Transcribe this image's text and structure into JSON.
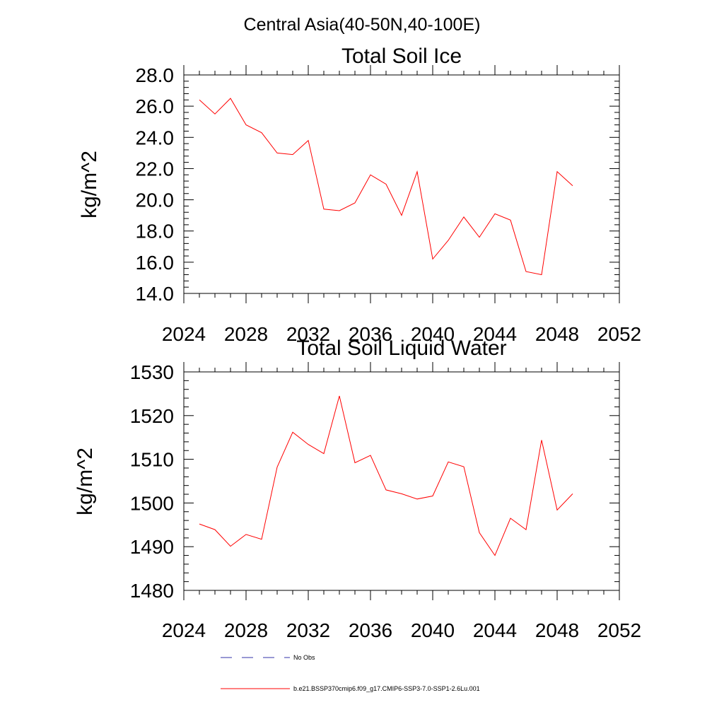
{
  "suptitle": "Central Asia(40-50N,40-100E)",
  "colors": {
    "series": "#ff0000",
    "obs": "#3333aa",
    "axis": "#000000"
  },
  "legend": {
    "position": "bottom-left",
    "entries": [
      {
        "label": "No Obs",
        "style": "dashed",
        "color": "#3333aa"
      },
      {
        "label": "b.e21.BSSP370cmip6.f09_g17.CMIP6-SSP3-7.0-SSP1-2.6Lu.001",
        "style": "solid",
        "color": "#ff0000"
      }
    ]
  },
  "chart_data": [
    {
      "type": "line",
      "title": "Total Soil Ice",
      "xlabel": "",
      "ylabel": "kg/m^2",
      "xlim": [
        2024,
        2052
      ],
      "ylim": [
        14,
        28
      ],
      "xticks": [
        2024,
        2028,
        2032,
        2036,
        2040,
        2044,
        2048,
        2052
      ],
      "xtick_labels": [
        "2024",
        "2028",
        "2032",
        "2036",
        "2040",
        "2044",
        "2048",
        "2052"
      ],
      "yticks": [
        14,
        16,
        18,
        20,
        22,
        24,
        26,
        28
      ],
      "ytick_labels": [
        "14.0",
        "16.0",
        "18.0",
        "20.0",
        "22.0",
        "24.0",
        "26.0",
        "28.0"
      ],
      "grid": false,
      "series": [
        {
          "x": [
            2025,
            2026,
            2027,
            2028,
            2029,
            2030,
            2031,
            2032,
            2033,
            2034,
            2035,
            2036,
            2037,
            2038,
            2039,
            2040,
            2041,
            2042,
            2043,
            2044,
            2045,
            2046,
            2047,
            2048,
            2049
          ],
          "values": [
            26.4,
            25.5,
            26.5,
            24.8,
            24.3,
            23.0,
            22.9,
            23.8,
            19.4,
            19.3,
            19.8,
            21.6,
            21.0,
            19.0,
            21.8,
            16.2,
            17.4,
            18.9,
            17.6,
            19.1,
            18.7,
            15.4,
            15.2,
            21.8,
            20.9
          ]
        }
      ]
    },
    {
      "type": "line",
      "title": "Total Soil Liquid Water",
      "xlabel": "",
      "ylabel": "kg/m^2",
      "xlim": [
        2024,
        2052
      ],
      "ylim": [
        1480,
        1530
      ],
      "xticks": [
        2024,
        2028,
        2032,
        2036,
        2040,
        2044,
        2048,
        2052
      ],
      "xtick_labels": [
        "2024",
        "2028",
        "2032",
        "2036",
        "2040",
        "2044",
        "2048",
        "2052"
      ],
      "yticks": [
        1480,
        1490,
        1500,
        1510,
        1520,
        1530
      ],
      "ytick_labels": [
        "1480",
        "1490",
        "1500",
        "1510",
        "1520",
        "1530"
      ],
      "grid": false,
      "series": [
        {
          "x": [
            2025,
            2026,
            2027,
            2028,
            2029,
            2030,
            2031,
            2032,
            2033,
            2034,
            2035,
            2036,
            2037,
            2038,
            2039,
            2040,
            2041,
            2042,
            2043,
            2044,
            2045,
            2046,
            2047,
            2048,
            2049
          ],
          "values": [
            1495.2,
            1493.9,
            1490.1,
            1492.8,
            1491.7,
            1508.2,
            1516.2,
            1513.4,
            1511.3,
            1524.5,
            1509.2,
            1510.9,
            1503.0,
            1502.1,
            1500.9,
            1501.6,
            1509.4,
            1508.3,
            1493.2,
            1488.0,
            1496.5,
            1493.9,
            1514.4,
            1498.4,
            1502.1
          ]
        }
      ]
    }
  ]
}
